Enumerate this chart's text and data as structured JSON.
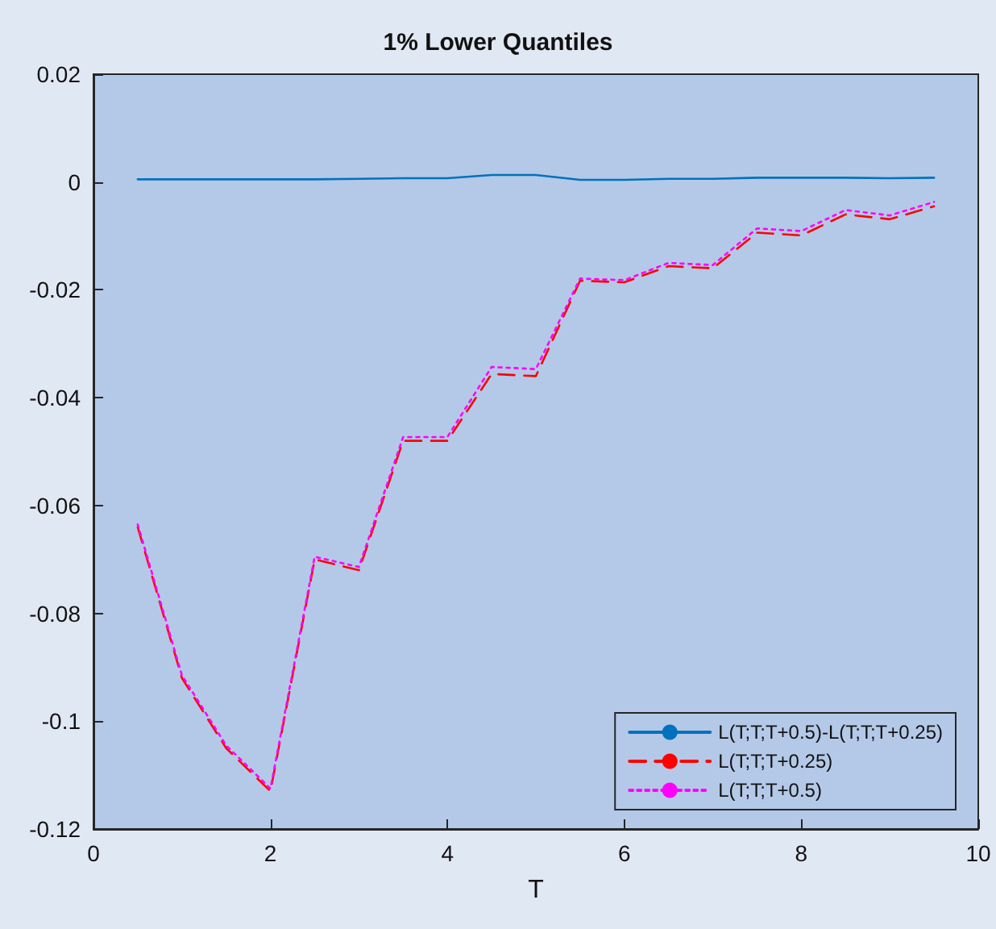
{
  "chart_data": {
    "type": "line",
    "title": "1% Lower Quantiles",
    "xlabel": "T",
    "x": [
      0.5,
      1,
      1.5,
      2,
      2.5,
      3,
      3.5,
      4,
      4.5,
      5,
      5.5,
      6,
      6.5,
      7,
      7.5,
      8,
      8.5,
      9,
      9.5
    ],
    "series": [
      {
        "name": "L(T;T;T+0.5)-L(T;T;T+0.25)",
        "color": "#0072bd",
        "line_style": "solid",
        "values": [
          0.0005,
          0.0005,
          0.0005,
          0.0005,
          0.0005,
          0.0006,
          0.0007,
          0.0007,
          0.0013,
          0.0013,
          0.0004,
          0.0004,
          0.0006,
          0.0006,
          0.0008,
          0.0008,
          0.0008,
          0.0007,
          0.0008
        ]
      },
      {
        "name": "L(T;T;T+0.25)",
        "color": "#ff0000",
        "line_style": "dashed",
        "values": [
          -0.064,
          -0.092,
          -0.105,
          -0.113,
          -0.07,
          -0.072,
          -0.048,
          -0.048,
          -0.0356,
          -0.036,
          -0.0183,
          -0.0186,
          -0.0156,
          -0.016,
          -0.0094,
          -0.0099,
          -0.006,
          -0.0069,
          -0.0045
        ]
      },
      {
        "name": "L(T;T;T+0.5)",
        "color": "#ff00ff",
        "line_style": "dotted",
        "values": [
          -0.0635,
          -0.0915,
          -0.1045,
          -0.1125,
          -0.0695,
          -0.0714,
          -0.0473,
          -0.0473,
          -0.0343,
          -0.0347,
          -0.0179,
          -0.0182,
          -0.015,
          -0.0154,
          -0.0086,
          -0.0091,
          -0.0052,
          -0.0062,
          -0.0037
        ]
      }
    ],
    "xlim": [
      0,
      10
    ],
    "xticks": [
      0,
      2,
      4,
      6,
      8,
      10
    ],
    "ylim": [
      -0.12,
      0.02
    ],
    "yticks": [
      -0.12,
      -0.1,
      -0.08,
      -0.06,
      -0.04,
      -0.02,
      0,
      0.02
    ],
    "grid": false,
    "legend": "bottom right",
    "marker": "none"
  }
}
